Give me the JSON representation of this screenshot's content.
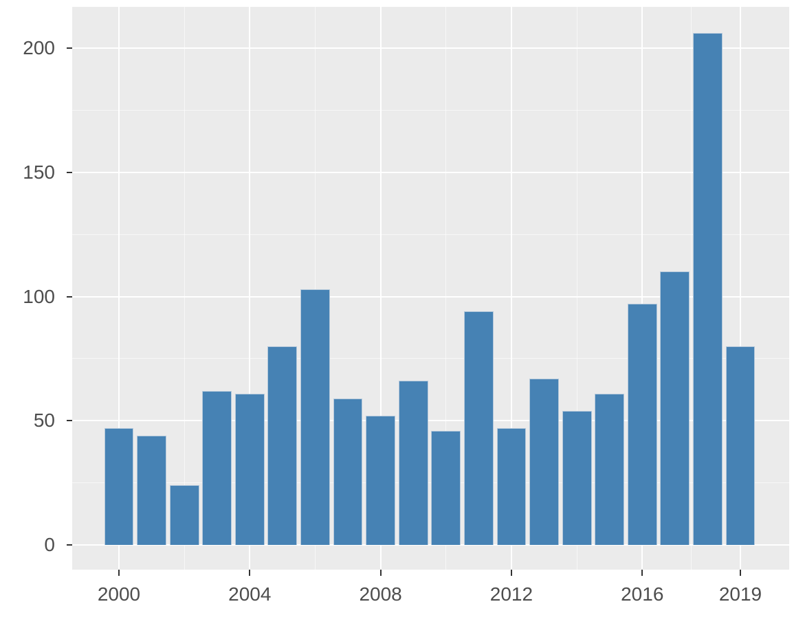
{
  "chart_data": {
    "type": "bar",
    "title": "",
    "xlabel": "",
    "ylabel": "",
    "x": [
      2000,
      2001,
      2002,
      2003,
      2004,
      2005,
      2006,
      2007,
      2008,
      2009,
      2010,
      2011,
      2012,
      2013,
      2014,
      2015,
      2016,
      2017,
      2018,
      2019
    ],
    "values": [
      47,
      44,
      24,
      62,
      61,
      80,
      103,
      59,
      52,
      66,
      46,
      94,
      47,
      67,
      54,
      61,
      97,
      110,
      206,
      80
    ],
    "x_ticks": [
      2000,
      2004,
      2008,
      2012,
      2016,
      2019
    ],
    "x_tick_labels": [
      "2000",
      "2004",
      "2008",
      "2012",
      "2016",
      "2019"
    ],
    "y_ticks": [
      0,
      50,
      100,
      150,
      200
    ],
    "y_tick_labels": [
      "0",
      "50",
      "100",
      "150",
      "200"
    ],
    "x_minor_breaks": [
      2002,
      2006,
      2010,
      2014,
      2017.5
    ],
    "y_minor_breaks": [
      25,
      75,
      125,
      175
    ],
    "xlim": [
      1998.571,
      2020.492
    ],
    "ylim": [
      -9.95,
      216.6
    ],
    "bar_width": 0.9,
    "grid": true,
    "legend_position": "none",
    "style": "ggplot2-grey-theme",
    "colors": {
      "bar_fill": "#4682B4",
      "bar_stroke": "#B5C9DB",
      "panel_background": "#EBEBEB",
      "grid_major": "#FFFFFF",
      "grid_minor": "#FFFFFF",
      "axis_text": "#4D4D4D",
      "tick_mark": "#333333",
      "outer_background": "#FFFFFF"
    }
  }
}
